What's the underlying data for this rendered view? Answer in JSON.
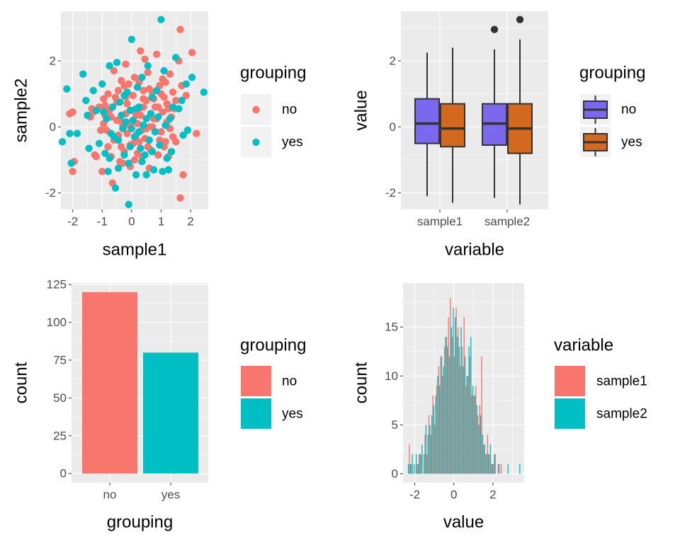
{
  "colors": {
    "no": "#F8766D",
    "yes": "#00BFC4",
    "box_no": "#7B68EE",
    "box_yes": "#D2691E",
    "panel_bg": "#EBEBEB",
    "grid": "#FFFFFF",
    "tick_text": "#4D4D4D",
    "text": "#000000"
  },
  "chart_data": [
    {
      "type": "scatter",
      "xlabel": "sample1",
      "ylabel": "sample2",
      "xlim": [
        -2.4,
        2.6
      ],
      "ylim": [
        -2.5,
        3.5
      ],
      "xticks": [
        -2,
        -1,
        0,
        1,
        2
      ],
      "xtick_labels": [
        "-2",
        "-1",
        "0",
        "1",
        "2"
      ],
      "yticks": [
        -2,
        0,
        2
      ],
      "ytick_labels": [
        "-2",
        "0",
        "2"
      ],
      "grid": true,
      "legend": {
        "title": "grouping",
        "position": "right",
        "items": [
          "no",
          "yes"
        ]
      },
      "series": [
        {
          "name": "no",
          "points": [
            [
              -2.1,
              0.4
            ],
            [
              -2.0,
              0.45
            ],
            [
              -2.0,
              -1.35
            ],
            [
              -1.95,
              -1.05
            ],
            [
              -1.4,
              0.3
            ],
            [
              -1.35,
              0.55
            ],
            [
              -1.3,
              0.45
            ],
            [
              -1.25,
              -0.85
            ],
            [
              -1.2,
              -0.9
            ],
            [
              -1.1,
              0.6
            ],
            [
              -1.0,
              -1.35
            ],
            [
              -0.95,
              0.1
            ],
            [
              -0.9,
              0.65
            ],
            [
              -0.85,
              -0.1
            ],
            [
              -0.8,
              1.0
            ],
            [
              -0.75,
              0.5
            ],
            [
              -0.7,
              -0.9
            ],
            [
              -0.65,
              -1.7
            ],
            [
              -0.6,
              1.7
            ],
            [
              -0.55,
              -0.3
            ],
            [
              -0.5,
              0.75
            ],
            [
              -0.45,
              1.1
            ],
            [
              -0.4,
              0.2
            ],
            [
              -0.35,
              -0.6
            ],
            [
              -0.3,
              -1.1
            ],
            [
              -0.25,
              1.25
            ],
            [
              -0.2,
              0.9
            ],
            [
              -0.15,
              -0.2
            ],
            [
              -0.1,
              0.05
            ],
            [
              -0.05,
              -1.2
            ],
            [
              -0.2,
              0.4
            ],
            [
              0.0,
              0.15
            ],
            [
              0.05,
              -0.5
            ],
            [
              0.1,
              1.5
            ],
            [
              0.15,
              0.35
            ],
            [
              0.2,
              -0.8
            ],
            [
              0.25,
              0.55
            ],
            [
              0.3,
              2.3
            ],
            [
              0.35,
              -0.1
            ],
            [
              0.4,
              1.1
            ],
            [
              0.45,
              -0.35
            ],
            [
              0.5,
              0.8
            ],
            [
              0.55,
              1.65
            ],
            [
              0.6,
              0.0
            ],
            [
              0.65,
              -0.7
            ],
            [
              0.7,
              1.05
            ],
            [
              0.75,
              0.25
            ],
            [
              0.8,
              -0.15
            ],
            [
              0.85,
              2.2
            ],
            [
              0.9,
              0.6
            ],
            [
              0.95,
              -0.4
            ],
            [
              1.0,
              1.0
            ],
            [
              1.05,
              0.45
            ],
            [
              1.1,
              -0.6
            ],
            [
              1.15,
              1.35
            ],
            [
              1.2,
              0.15
            ],
            [
              1.25,
              -0.9
            ],
            [
              1.3,
              1.6
            ],
            [
              1.35,
              0.3
            ],
            [
              1.4,
              -0.3
            ],
            [
              1.45,
              0.55
            ],
            [
              1.5,
              -0.45
            ],
            [
              1.6,
              2.0
            ],
            [
              1.65,
              -2.15
            ],
            [
              1.7,
              1.25
            ],
            [
              1.75,
              -1.45
            ],
            [
              1.85,
              0.95
            ],
            [
              2.05,
              2.25
            ],
            [
              2.2,
              -0.2
            ],
            [
              1.65,
              2.95
            ],
            [
              -0.55,
              0.9
            ],
            [
              -0.3,
              0.05
            ],
            [
              0.05,
              0.95
            ],
            [
              0.4,
              0.6
            ],
            [
              0.6,
              -1.25
            ],
            [
              0.85,
              0.25
            ],
            [
              1.1,
              0.9
            ],
            [
              -0.05,
              -0.55
            ],
            [
              0.25,
              1.35
            ],
            [
              0.5,
              -0.05
            ],
            [
              -0.7,
              0.3
            ],
            [
              -0.45,
              -0.25
            ],
            [
              0.95,
              1.25
            ],
            [
              0.2,
              0.1
            ],
            [
              0.75,
              0.85
            ],
            [
              -0.15,
              0.7
            ],
            [
              1.25,
              0.55
            ],
            [
              0.35,
              -0.9
            ],
            [
              -0.6,
              -0.4
            ],
            [
              0.65,
              0.4
            ],
            [
              -0.35,
              1.4
            ],
            [
              1.0,
              -0.15
            ],
            [
              0.15,
              -0.25
            ],
            [
              -0.95,
              0.85
            ],
            [
              0.45,
              2.05
            ],
            [
              1.4,
              1.05
            ],
            [
              -0.2,
              1.9
            ],
            [
              0.9,
              -0.85
            ],
            [
              -1.05,
              -0.1
            ],
            [
              0.3,
              0.35
            ],
            [
              0.55,
              -0.6
            ],
            [
              1.15,
              -0.45
            ],
            [
              -0.5,
              0.2
            ],
            [
              -0.1,
              1.3
            ],
            [
              0.8,
              0.6
            ],
            [
              1.5,
              0.8
            ],
            [
              -0.8,
              -0.6
            ],
            [
              0.1,
              -1.0
            ],
            [
              0.7,
              0.0
            ],
            [
              1.3,
              -0.05
            ],
            [
              -0.25,
              -0.75
            ],
            [
              0.4,
              0.85
            ],
            [
              -0.65,
              0.6
            ],
            [
              1.05,
              1.45
            ],
            [
              0.0,
              0.5
            ],
            [
              -0.4,
              -1.05
            ],
            [
              0.6,
              1.15
            ],
            [
              1.2,
              0.7
            ],
            [
              -0.9,
              0.35
            ],
            [
              0.25,
              -0.45
            ]
          ]
        },
        {
          "name": "yes",
          "points": [
            [
              -2.35,
              -0.45
            ],
            [
              -2.2,
              1.15
            ],
            [
              -2.1,
              -0.2
            ],
            [
              -2.05,
              -1.1
            ],
            [
              -1.85,
              -0.2
            ],
            [
              -1.65,
              1.6
            ],
            [
              -1.55,
              0.8
            ],
            [
              -1.45,
              -0.65
            ],
            [
              -1.3,
              1.1
            ],
            [
              -1.2,
              0.5
            ],
            [
              -1.1,
              -0.5
            ],
            [
              -1.0,
              1.3
            ],
            [
              -0.9,
              -0.8
            ],
            [
              -0.85,
              0.25
            ],
            [
              -0.8,
              -1.35
            ],
            [
              -0.75,
              1.85
            ],
            [
              -0.7,
              -0.2
            ],
            [
              -0.65,
              0.6
            ],
            [
              -0.55,
              -1.85
            ],
            [
              -0.5,
              1.95
            ],
            [
              -0.45,
              -1.25
            ],
            [
              -0.35,
              0.35
            ],
            [
              -0.3,
              -0.05
            ],
            [
              -0.25,
              -0.85
            ],
            [
              -0.2,
              0.15
            ],
            [
              -0.15,
              1.05
            ],
            [
              -0.1,
              -2.35
            ],
            [
              -0.05,
              -0.6
            ],
            [
              0.0,
              2.65
            ],
            [
              0.05,
              0.2
            ],
            [
              0.1,
              -0.3
            ],
            [
              0.15,
              -1.45
            ],
            [
              0.2,
              1.2
            ],
            [
              0.25,
              0.6
            ],
            [
              0.3,
              -0.65
            ],
            [
              0.35,
              -1.05
            ],
            [
              0.4,
              0.05
            ],
            [
              0.5,
              -1.45
            ],
            [
              0.55,
              1.85
            ],
            [
              0.6,
              -0.4
            ],
            [
              0.7,
              0.9
            ],
            [
              0.75,
              -1.3
            ],
            [
              0.8,
              -0.15
            ],
            [
              0.9,
              0.3
            ],
            [
              1.0,
              3.25
            ],
            [
              1.05,
              -1.35
            ],
            [
              1.15,
              0.05
            ],
            [
              1.25,
              -1.3
            ],
            [
              1.35,
              -0.75
            ],
            [
              1.5,
              2.1
            ],
            [
              1.6,
              0.55
            ],
            [
              1.7,
              0.8
            ],
            [
              1.75,
              -0.25
            ],
            [
              1.9,
              -0.1
            ],
            [
              2.05,
              1.5
            ],
            [
              2.45,
              1.05
            ],
            [
              -0.6,
              -0.3
            ],
            [
              0.45,
              -0.85
            ],
            [
              1.85,
              1.3
            ],
            [
              0.65,
              0.4
            ],
            [
              -1.5,
              0.35
            ],
            [
              0.95,
              -0.55
            ],
            [
              -0.4,
              0.75
            ],
            [
              1.4,
              0.6
            ],
            [
              0.15,
              0.55
            ],
            [
              -0.95,
              0.45
            ],
            [
              0.85,
              1.1
            ],
            [
              -0.1,
              -1.1
            ],
            [
              1.2,
              -0.95
            ],
            [
              0.35,
              1.5
            ],
            [
              -0.25,
              0.95
            ],
            [
              0.5,
              0.25
            ],
            [
              1.1,
              1.7
            ],
            [
              -0.75,
              -0.95
            ],
            [
              0.25,
              -0.15
            ],
            [
              -0.45,
              -0.4
            ],
            [
              0.7,
              -0.75
            ],
            [
              1.3,
              0.25
            ],
            [
              0.0,
              -0.05
            ],
            [
              -0.05,
              0.5
            ]
          ]
        }
      ]
    },
    {
      "type": "boxplot",
      "xlabel": "variable",
      "ylabel": "value",
      "categories": [
        "sample1",
        "sample2"
      ],
      "ylim": [
        -2.5,
        3.5
      ],
      "yticks": [
        -2,
        0,
        2
      ],
      "ytick_labels": [
        "-2",
        "0",
        "2"
      ],
      "grid": true,
      "legend": {
        "title": "grouping",
        "position": "right",
        "items": [
          "no",
          "yes"
        ]
      },
      "boxes": [
        {
          "category": "sample1",
          "group": "no",
          "min": -2.1,
          "q1": -0.5,
          "median": 0.1,
          "q3": 0.85,
          "max": 2.25,
          "outliers": []
        },
        {
          "category": "sample1",
          "group": "yes",
          "min": -2.3,
          "q1": -0.6,
          "median": -0.05,
          "q3": 0.7,
          "max": 2.4,
          "outliers": []
        },
        {
          "category": "sample2",
          "group": "no",
          "min": -2.15,
          "q1": -0.55,
          "median": 0.1,
          "q3": 0.7,
          "max": 2.35,
          "outliers": [
            2.95
          ]
        },
        {
          "category": "sample2",
          "group": "yes",
          "min": -2.35,
          "q1": -0.8,
          "median": -0.05,
          "q3": 0.7,
          "max": 2.65,
          "outliers": [
            3.25
          ]
        }
      ]
    },
    {
      "type": "bar",
      "xlabel": "grouping",
      "ylabel": "count",
      "categories": [
        "no",
        "yes"
      ],
      "values": [
        120,
        80
      ],
      "ylim": [
        -6,
        126
      ],
      "yticks": [
        0,
        25,
        50,
        75,
        100,
        125
      ],
      "ytick_labels": [
        "0",
        "25",
        "50",
        "75",
        "100",
        "125"
      ],
      "grid": true,
      "legend": {
        "title": "grouping",
        "position": "right",
        "items": [
          "no",
          "yes"
        ]
      }
    },
    {
      "type": "histogram",
      "xlabel": "value",
      "ylabel": "count",
      "xlim": [
        -2.6,
        3.6
      ],
      "ylim": [
        -0.9,
        19.5
      ],
      "xticks": [
        -2,
        0,
        2
      ],
      "xtick_labels": [
        "-2",
        "0",
        "2"
      ],
      "yticks": [
        0,
        5,
        10,
        15
      ],
      "ytick_labels": [
        "0",
        "5",
        "10",
        "15"
      ],
      "grid": true,
      "legend": {
        "title": "variable",
        "position": "right",
        "items": [
          "sample1",
          "sample2"
        ]
      },
      "bins": {
        "start": -2.4,
        "width": 0.1
      },
      "series": [
        {
          "name": "sample1",
          "counts": [
            0,
            3,
            1,
            0,
            0,
            1,
            2,
            2,
            0,
            4,
            2,
            6,
            4,
            8,
            5,
            9,
            11,
            12,
            10,
            13,
            14,
            16,
            18,
            14,
            12,
            17,
            15,
            11,
            13,
            16,
            9,
            10,
            12,
            8,
            8,
            9,
            6,
            7,
            12,
            3,
            2,
            4,
            2,
            1,
            1,
            2,
            0,
            1,
            1,
            0,
            0
          ]
        },
        {
          "name": "sample2",
          "counts": [
            1,
            1,
            2,
            1,
            2,
            1,
            2,
            3,
            2,
            5,
            4,
            5,
            6,
            7,
            8,
            10,
            9,
            12,
            11,
            14,
            13,
            12,
            15,
            17,
            16,
            14,
            13,
            15,
            11,
            12,
            10,
            13,
            14,
            9,
            8,
            7,
            5,
            6,
            4,
            3,
            2,
            2,
            3,
            1,
            2,
            0,
            1,
            0,
            0,
            0,
            0,
            1,
            0,
            0,
            0,
            0,
            0,
            1
          ]
        }
      ]
    }
  ]
}
